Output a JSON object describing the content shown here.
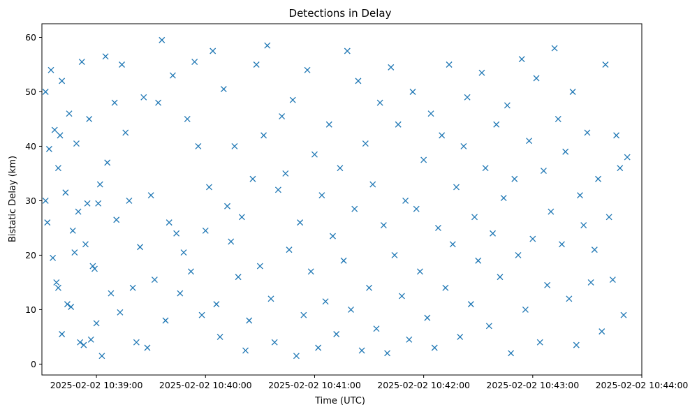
{
  "chart_data": {
    "type": "scatter",
    "title": "Detections in Delay",
    "xlabel": "Time (UTC)",
    "ylabel": "Bistatic Delay (km)",
    "x_ticks": [
      "2025-02-02 10:39:00",
      "2025-02-02 10:40:00",
      "2025-02-02 10:41:00",
      "2025-02-02 10:42:00",
      "2025-02-02 10:43:00",
      "2025-02-02 10:44:00"
    ],
    "y_ticks": [
      "0",
      "10",
      "20",
      "30",
      "40",
      "50",
      "60"
    ],
    "xlim": [
      "2025-02-02 10:38:30",
      "2025-02-02 10:44:00"
    ],
    "ylim": [
      -2,
      62.5
    ],
    "marker": "x",
    "grid": false,
    "color": "#1f77b4",
    "series": [
      {
        "x": [
          "2025-02-02 10:38:32",
          "2025-02-02 10:38:33",
          "2025-02-02 10:38:35",
          "2025-02-02 10:38:36",
          "2025-02-02 10:38:38",
          "2025-02-02 10:38:39",
          "2025-02-02 10:38:40",
          "2025-02-02 10:38:41",
          "2025-02-02 10:38:43",
          "2025-02-02 10:38:45",
          "2025-02-02 10:38:46",
          "2025-02-02 10:38:48",
          "2025-02-02 10:38:49",
          "2025-02-02 10:38:51",
          "2025-02-02 10:38:52",
          "2025-02-02 10:38:54",
          "2025-02-02 10:38:55",
          "2025-02-02 10:38:57",
          "2025-02-02 10:38:58",
          "2025-02-02 10:39:00",
          "2025-02-02 10:38:32",
          "2025-02-02 10:38:34",
          "2025-02-02 10:38:37",
          "2025-02-02 10:38:39",
          "2025-02-02 10:38:41",
          "2025-02-02 10:38:44",
          "2025-02-02 10:38:47",
          "2025-02-02 10:38:50",
          "2025-02-02 10:38:53",
          "2025-02-02 10:38:56",
          "2025-02-02 10:38:59",
          "2025-02-02 10:39:01",
          "2025-02-02 10:39:02",
          "2025-02-02 10:39:03",
          "2025-02-02 10:39:05",
          "2025-02-02 10:39:06",
          "2025-02-02 10:39:08",
          "2025-02-02 10:39:10",
          "2025-02-02 10:39:11",
          "2025-02-02 10:39:13",
          "2025-02-02 10:39:14",
          "2025-02-02 10:39:16",
          "2025-02-02 10:39:18",
          "2025-02-02 10:39:20",
          "2025-02-02 10:39:22",
          "2025-02-02 10:39:24",
          "2025-02-02 10:39:26",
          "2025-02-02 10:39:28",
          "2025-02-02 10:39:30",
          "2025-02-02 10:39:32",
          "2025-02-02 10:39:34",
          "2025-02-02 10:39:36",
          "2025-02-02 10:39:38",
          "2025-02-02 10:39:40",
          "2025-02-02 10:39:42",
          "2025-02-02 10:39:44",
          "2025-02-02 10:39:46",
          "2025-02-02 10:39:48",
          "2025-02-02 10:39:50",
          "2025-02-02 10:39:52",
          "2025-02-02 10:39:54",
          "2025-02-02 10:39:56",
          "2025-02-02 10:39:58",
          "2025-02-02 10:40:00",
          "2025-02-02 10:40:02",
          "2025-02-02 10:40:04",
          "2025-02-02 10:40:06",
          "2025-02-02 10:40:08",
          "2025-02-02 10:40:10",
          "2025-02-02 10:40:12",
          "2025-02-02 10:40:14",
          "2025-02-02 10:40:16",
          "2025-02-02 10:40:18",
          "2025-02-02 10:40:20",
          "2025-02-02 10:40:22",
          "2025-02-02 10:40:24",
          "2025-02-02 10:40:26",
          "2025-02-02 10:40:28",
          "2025-02-02 10:40:30",
          "2025-02-02 10:40:32",
          "2025-02-02 10:40:34",
          "2025-02-02 10:40:36",
          "2025-02-02 10:40:38",
          "2025-02-02 10:40:40",
          "2025-02-02 10:40:42",
          "2025-02-02 10:40:44",
          "2025-02-02 10:40:46",
          "2025-02-02 10:40:48",
          "2025-02-02 10:40:50",
          "2025-02-02 10:40:52",
          "2025-02-02 10:40:54",
          "2025-02-02 10:40:56",
          "2025-02-02 10:40:58",
          "2025-02-02 10:41:00",
          "2025-02-02 10:41:02",
          "2025-02-02 10:41:04",
          "2025-02-02 10:41:06",
          "2025-02-02 10:41:08",
          "2025-02-02 10:41:10",
          "2025-02-02 10:41:12",
          "2025-02-02 10:41:14",
          "2025-02-02 10:41:16",
          "2025-02-02 10:41:18",
          "2025-02-02 10:41:20",
          "2025-02-02 10:41:22",
          "2025-02-02 10:41:24",
          "2025-02-02 10:41:26",
          "2025-02-02 10:41:28",
          "2025-02-02 10:41:30",
          "2025-02-02 10:41:32",
          "2025-02-02 10:41:34",
          "2025-02-02 10:41:36",
          "2025-02-02 10:41:38",
          "2025-02-02 10:41:40",
          "2025-02-02 10:41:42",
          "2025-02-02 10:41:44",
          "2025-02-02 10:41:46",
          "2025-02-02 10:41:48",
          "2025-02-02 10:41:50",
          "2025-02-02 10:41:52",
          "2025-02-02 10:41:54",
          "2025-02-02 10:41:56",
          "2025-02-02 10:41:58",
          "2025-02-02 10:42:00",
          "2025-02-02 10:42:02",
          "2025-02-02 10:42:04",
          "2025-02-02 10:42:06",
          "2025-02-02 10:42:08",
          "2025-02-02 10:42:10",
          "2025-02-02 10:42:12",
          "2025-02-02 10:42:14",
          "2025-02-02 10:42:16",
          "2025-02-02 10:42:18",
          "2025-02-02 10:42:20",
          "2025-02-02 10:42:22",
          "2025-02-02 10:42:24",
          "2025-02-02 10:42:26",
          "2025-02-02 10:42:28",
          "2025-02-02 10:42:30",
          "2025-02-02 10:42:32",
          "2025-02-02 10:42:34",
          "2025-02-02 10:42:36",
          "2025-02-02 10:42:38",
          "2025-02-02 10:42:40",
          "2025-02-02 10:42:42",
          "2025-02-02 10:42:44",
          "2025-02-02 10:42:46",
          "2025-02-02 10:42:48",
          "2025-02-02 10:42:50",
          "2025-02-02 10:42:52",
          "2025-02-02 10:42:54",
          "2025-02-02 10:42:56",
          "2025-02-02 10:42:58",
          "2025-02-02 10:43:00",
          "2025-02-02 10:43:02",
          "2025-02-02 10:43:04",
          "2025-02-02 10:43:06",
          "2025-02-02 10:43:08",
          "2025-02-02 10:43:10",
          "2025-02-02 10:43:12",
          "2025-02-02 10:43:14",
          "2025-02-02 10:43:16",
          "2025-02-02 10:43:18",
          "2025-02-02 10:43:20",
          "2025-02-02 10:43:22",
          "2025-02-02 10:43:24",
          "2025-02-02 10:43:26",
          "2025-02-02 10:43:28",
          "2025-02-02 10:43:30",
          "2025-02-02 10:43:32",
          "2025-02-02 10:43:34",
          "2025-02-02 10:43:36",
          "2025-02-02 10:43:38",
          "2025-02-02 10:43:40",
          "2025-02-02 10:43:42",
          "2025-02-02 10:43:44",
          "2025-02-02 10:43:46",
          "2025-02-02 10:43:48",
          "2025-02-02 10:43:50",
          "2025-02-02 10:43:52"
        ],
        "y": [
          50,
          26,
          54,
          19.5,
          15,
          36,
          42,
          5.5,
          31.5,
          46,
          10.5,
          20.5,
          40.5,
          4,
          55.5,
          22,
          29.5,
          4.5,
          18,
          7.5,
          30,
          39.5,
          43,
          14,
          52,
          11,
          24.5,
          28,
          3.5,
          45,
          17.5,
          29.5,
          33,
          1.5,
          56.5,
          37,
          13,
          48,
          26.5,
          9.5,
          55,
          42.5,
          30,
          14,
          4,
          21.5,
          49,
          3,
          31,
          15.5,
          48,
          59.5,
          8,
          26,
          53,
          24,
          13,
          20.5,
          45,
          17,
          55.5,
          40,
          9,
          24.5,
          32.5,
          57.5,
          11,
          5,
          50.5,
          29,
          22.5,
          40,
          16,
          27,
          2.5,
          8,
          34,
          55,
          18,
          42,
          58.5,
          12,
          4,
          32,
          45.5,
          35,
          21,
          48.5,
          1.5,
          26,
          9,
          54,
          17,
          38.5,
          3,
          31,
          11.5,
          44,
          23.5,
          5.5,
          36,
          19,
          57.5,
          10,
          28.5,
          52,
          2.5,
          40.5,
          14,
          33,
          6.5,
          48,
          25.5,
          2,
          54.5,
          20,
          44,
          12.5,
          30,
          4.5,
          50,
          28.5,
          17,
          37.5,
          8.5,
          46,
          3,
          25,
          42,
          14,
          55,
          22,
          32.5,
          5,
          40,
          49,
          11,
          27,
          19,
          53.5,
          36,
          7,
          24,
          44,
          16,
          30.5,
          47.5,
          2,
          34,
          20,
          56,
          10,
          41,
          23,
          52.5,
          4,
          35.5,
          14.5,
          28,
          58,
          45,
          22,
          39,
          12,
          50,
          3.5,
          31,
          25.5,
          42.5,
          15,
          21,
          34,
          6,
          55,
          27,
          15.5,
          42,
          36,
          9,
          38
        ]
      }
    ]
  }
}
